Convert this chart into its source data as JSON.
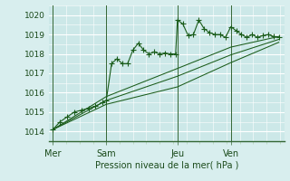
{
  "title": "Pression niveau de la mer( hPa )",
  "bg_color": "#d8eeee",
  "plot_bg": "#cce8e8",
  "grid_color_major": "#ffffff",
  "grid_color_minor": "#ddeedd",
  "line_color": "#1a5c1a",
  "vline_color": "#336633",
  "ylim": [
    1013.5,
    1020.5
  ],
  "yticks": [
    1014,
    1015,
    1016,
    1017,
    1018,
    1019,
    1020
  ],
  "day_labels": [
    "Mer",
    "Sam",
    "Jeu",
    "Ven"
  ],
  "day_positions": [
    0.0,
    3.0,
    7.0,
    10.0
  ],
  "xlim": [
    -0.2,
    13.0
  ],
  "series1_x": [
    0,
    0.4,
    0.8,
    1.2,
    1.6,
    2.0,
    2.4,
    2.8,
    3.0,
    3.3,
    3.6,
    3.9,
    4.2,
    4.5,
    4.8,
    5.1,
    5.4,
    5.7,
    6.0,
    6.3,
    6.6,
    6.9,
    7.0,
    7.3,
    7.6,
    7.9,
    8.2,
    8.5,
    8.8,
    9.1,
    9.4,
    9.7,
    10.0,
    10.3,
    10.6,
    10.9,
    11.2,
    11.5,
    11.8,
    12.1,
    12.4,
    12.7
  ],
  "series1_y": [
    1014.1,
    1014.5,
    1014.75,
    1015.0,
    1015.1,
    1015.2,
    1015.3,
    1015.5,
    1015.6,
    1017.5,
    1017.75,
    1017.5,
    1017.5,
    1018.2,
    1018.55,
    1018.2,
    1018.0,
    1018.1,
    1018.0,
    1018.05,
    1018.0,
    1018.0,
    1019.75,
    1019.55,
    1018.95,
    1019.0,
    1019.75,
    1019.3,
    1019.1,
    1019.0,
    1019.0,
    1018.85,
    1019.4,
    1019.2,
    1019.0,
    1018.85,
    1019.0,
    1018.85,
    1018.95,
    1019.0,
    1018.9,
    1018.85
  ],
  "series2": [
    [
      0,
      1014.1
    ],
    [
      3,
      1015.8
    ],
    [
      7,
      1017.25
    ],
    [
      10.0,
      1018.35
    ],
    [
      12.7,
      1018.9
    ]
  ],
  "series3": [
    [
      0,
      1014.1
    ],
    [
      3,
      1015.6
    ],
    [
      7,
      1016.85
    ],
    [
      10.0,
      1017.95
    ],
    [
      12.7,
      1018.75
    ]
  ],
  "series4": [
    [
      0,
      1014.1
    ],
    [
      3,
      1015.4
    ],
    [
      7,
      1016.3
    ],
    [
      10.0,
      1017.55
    ],
    [
      12.7,
      1018.6
    ]
  ],
  "xlabel_fontsize": 7,
  "ytick_fontsize": 6.5,
  "xtick_fontsize": 7
}
